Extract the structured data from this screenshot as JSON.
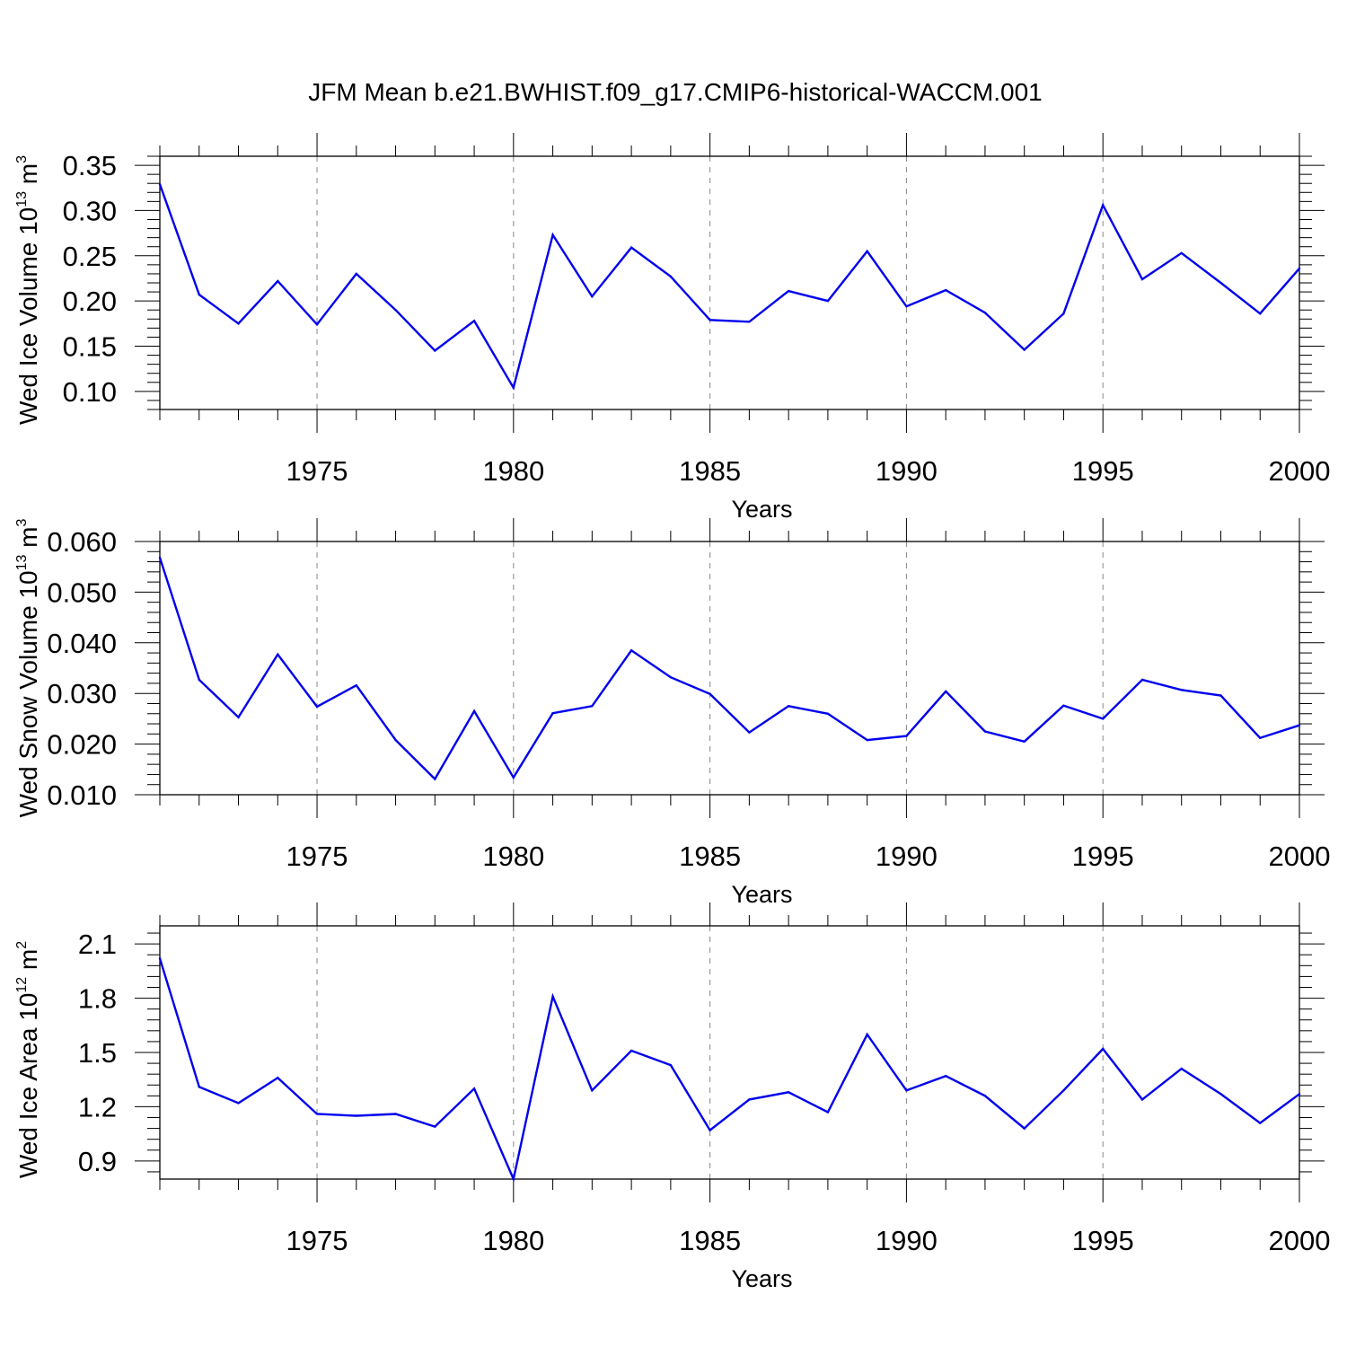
{
  "title": "JFM Mean b.e21.BWHIST.f09_g17.CMIP6-historical-WACCM.001",
  "colors": {
    "line": "#0000ee",
    "axis": "#000000",
    "grid": "#888888",
    "background": "#ffffff"
  },
  "chart_data": [
    {
      "type": "line",
      "name": "wed-ice-volume",
      "ylabel": {
        "text": "Wed Ice Volume 10",
        "exp1": "13",
        "mid": " m",
        "exp2": "3"
      },
      "xlabel": "Years",
      "xlim": [
        1971,
        2000
      ],
      "ylim": [
        0.08,
        0.36
      ],
      "x_ticks": [
        1975,
        1980,
        1985,
        1990,
        1995,
        2000
      ],
      "x_tick_labels": [
        "1975",
        "1980",
        "1985",
        "1990",
        "1995",
        "2000"
      ],
      "y_ticks": [
        0.1,
        0.15,
        0.2,
        0.25,
        0.3,
        0.35
      ],
      "y_tick_labels": [
        "0.10",
        "0.15",
        "0.20",
        "0.25",
        "0.30",
        "0.35"
      ],
      "x": [
        1971,
        1972,
        1973,
        1974,
        1975,
        1976,
        1977,
        1978,
        1979,
        1980,
        1981,
        1982,
        1983,
        1984,
        1985,
        1986,
        1987,
        1988,
        1989,
        1990,
        1991,
        1992,
        1993,
        1994,
        1995,
        1996,
        1997,
        1998,
        1999,
        2000
      ],
      "values": [
        0.329,
        0.207,
        0.175,
        0.222,
        0.174,
        0.23,
        0.19,
        0.145,
        0.178,
        0.104,
        0.273,
        0.205,
        0.259,
        0.227,
        0.179,
        0.177,
        0.211,
        0.2,
        0.255,
        0.194,
        0.212,
        0.187,
        0.146,
        0.186,
        0.306,
        0.224,
        0.253,
        0.22,
        0.186,
        0.236
      ]
    },
    {
      "type": "line",
      "name": "wed-snow-volume",
      "ylabel": {
        "text": "Wed Snow Volume 10",
        "exp1": "13",
        "mid": " m",
        "exp2": "3"
      },
      "xlabel": "Years",
      "xlim": [
        1971,
        2000
      ],
      "ylim": [
        0.01,
        0.06
      ],
      "x_ticks": [
        1975,
        1980,
        1985,
        1990,
        1995,
        2000
      ],
      "x_tick_labels": [
        "1975",
        "1980",
        "1985",
        "1990",
        "1995",
        "2000"
      ],
      "y_ticks": [
        0.01,
        0.02,
        0.03,
        0.04,
        0.05,
        0.06
      ],
      "y_tick_labels": [
        "0.010",
        "0.020",
        "0.030",
        "0.040",
        "0.050",
        "0.060"
      ],
      "x": [
        1971,
        1972,
        1973,
        1974,
        1975,
        1976,
        1977,
        1978,
        1979,
        1980,
        1981,
        1982,
        1983,
        1984,
        1985,
        1986,
        1987,
        1988,
        1989,
        1990,
        1991,
        1992,
        1993,
        1994,
        1995,
        1996,
        1997,
        1998,
        1999,
        2000
      ],
      "values": [
        0.0568,
        0.0327,
        0.0253,
        0.0377,
        0.0274,
        0.0316,
        0.0208,
        0.0131,
        0.0265,
        0.0134,
        0.0261,
        0.0275,
        0.0385,
        0.0332,
        0.0299,
        0.0223,
        0.0275,
        0.026,
        0.0208,
        0.0216,
        0.0304,
        0.0225,
        0.0205,
        0.0276,
        0.025,
        0.0327,
        0.0307,
        0.0296,
        0.0212,
        0.0237
      ]
    },
    {
      "type": "line",
      "name": "wed-ice-area",
      "ylabel": {
        "text": "Wed Ice Area 10",
        "exp1": "12",
        "mid": " m",
        "exp2": "2"
      },
      "xlabel": "Years",
      "xlim": [
        1971,
        2000
      ],
      "ylim": [
        0.8,
        2.2
      ],
      "x_ticks": [
        1975,
        1980,
        1985,
        1990,
        1995,
        2000
      ],
      "x_tick_labels": [
        "1975",
        "1980",
        "1985",
        "1990",
        "1995",
        "2000"
      ],
      "y_ticks": [
        0.9,
        1.2,
        1.5,
        1.8,
        2.1
      ],
      "y_tick_labels": [
        "0.9",
        "1.2",
        "1.5",
        "1.8",
        "2.1"
      ],
      "x": [
        1971,
        1972,
        1973,
        1974,
        1975,
        1976,
        1977,
        1978,
        1979,
        1980,
        1981,
        1982,
        1983,
        1984,
        1985,
        1986,
        1987,
        1988,
        1989,
        1990,
        1991,
        1992,
        1993,
        1994,
        1995,
        1996,
        1997,
        1998,
        1999,
        2000
      ],
      "values": [
        2.02,
        1.31,
        1.22,
        1.36,
        1.16,
        1.15,
        1.16,
        1.09,
        1.3,
        0.8,
        1.81,
        1.29,
        1.51,
        1.43,
        1.07,
        1.24,
        1.28,
        1.17,
        1.6,
        1.29,
        1.37,
        1.26,
        1.08,
        1.29,
        1.52,
        1.24,
        1.41,
        1.27,
        1.11,
        1.27
      ]
    }
  ]
}
